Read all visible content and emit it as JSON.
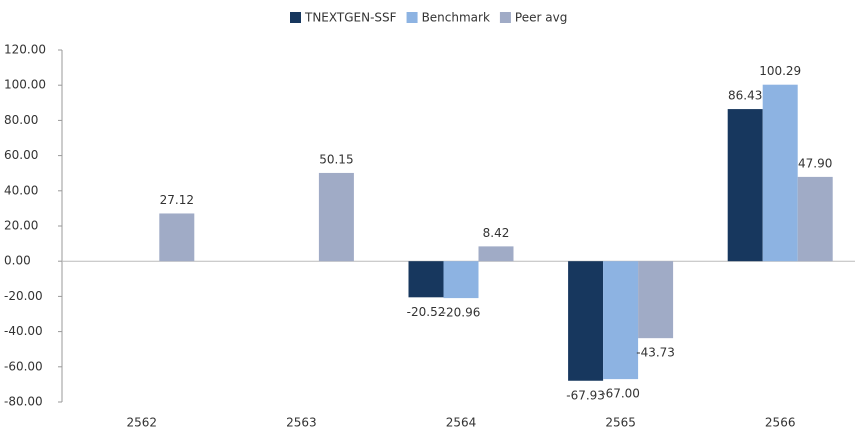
{
  "chart_data": {
    "type": "bar",
    "categories": [
      "2562",
      "2563",
      "2564",
      "2565",
      "2566"
    ],
    "series": [
      {
        "name": "TNEXTGEN-SSF",
        "color": "#17375e",
        "values": [
          null,
          null,
          -20.52,
          -67.93,
          86.43
        ],
        "value_labels": [
          null,
          null,
          "-20.52",
          "-67.93",
          "86.43"
        ]
      },
      {
        "name": "Benchmark",
        "color": "#8db3e2",
        "values": [
          null,
          null,
          -20.96,
          -67.0,
          100.29
        ],
        "value_labels": [
          null,
          null,
          "-20.96",
          "-67.00",
          "100.29"
        ]
      },
      {
        "name": "Peer avg",
        "color": "#a0abc6",
        "values": [
          27.12,
          50.15,
          8.42,
          -43.73,
          47.9
        ],
        "value_labels": [
          "27.12",
          "50.15",
          "8.42",
          "-43.73",
          "47.90"
        ]
      }
    ],
    "ylim": [
      -80,
      120
    ],
    "yticks": [
      {
        "value": -80,
        "label": "-80.00"
      },
      {
        "value": -60,
        "label": "-60.00"
      },
      {
        "value": -40,
        "label": "-40.00"
      },
      {
        "value": -20,
        "label": "-20.00"
      },
      {
        "value": 0,
        "label": "0.00"
      },
      {
        "value": 20,
        "label": "20.00"
      },
      {
        "value": 40,
        "label": "40.00"
      },
      {
        "value": 60,
        "label": "60.00"
      },
      {
        "value": 80,
        "label": "80.00"
      },
      {
        "value": 100,
        "label": "100.00"
      },
      {
        "value": 120,
        "label": "120.00"
      }
    ],
    "legend": "top"
  }
}
